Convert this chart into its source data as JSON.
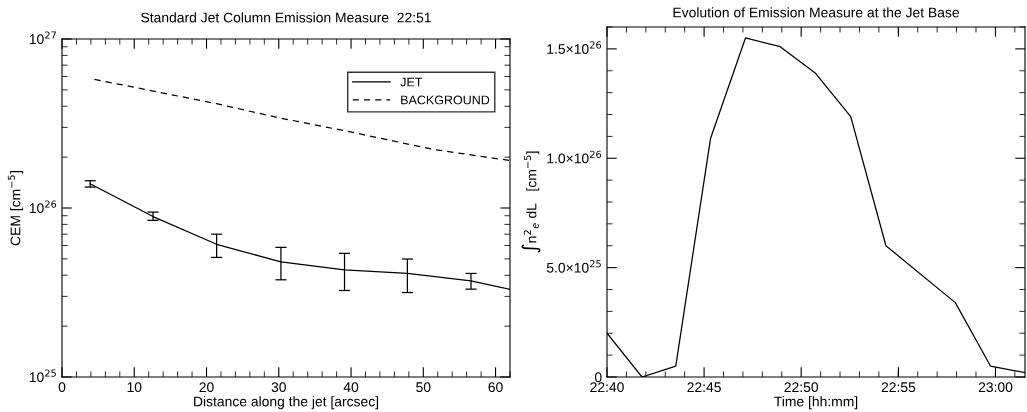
{
  "chart_data": [
    {
      "type": "line",
      "title": "Standard Jet Column Emission Measure  22:51",
      "xlabel": "Distance along the jet [arcsec]",
      "ylabel": "CEM [cm$^{−5}$]",
      "log": "y",
      "xlim": [
        0,
        62
      ],
      "xticks": [
        0,
        10,
        20,
        30,
        40,
        50,
        60
      ],
      "ylim": [
        1e+25,
        1e+27
      ],
      "yticks": [
        {
          "value": 1e+25,
          "label": "10$^{25}$"
        },
        {
          "value": 1e+26,
          "label": "10$^{26}$"
        },
        {
          "value": 1e+27,
          "label": "10$^{27}$"
        }
      ],
      "legend": "top right",
      "grid": false,
      "series": [
        {
          "name": "JET",
          "color": "#000000",
          "line_style": "solid",
          "x": [
            3.9,
            12.6,
            21.4,
            30.3,
            39.1,
            47.8,
            56.6,
            62
          ],
          "values": [
            1.39e+26,
            8.9e+25,
            6.1e+25,
            4.8e+25,
            4.3e+25,
            4.1e+25,
            3.7e+25,
            3.3e+25
          ],
          "errors": [
            [
              1.33e+26,
              1.45e+26
            ],
            [
              8.45e+25,
              9.46e+25
            ],
            [
              5.1e+25,
              7e+25
            ],
            [
              3.76e+25,
              5.85e+25
            ],
            [
              3.25e+25,
              5.39e+25
            ],
            [
              3.16e+25,
              4.99e+25
            ],
            [
              3.31e+25,
              4.1e+25
            ],
            null
          ]
        },
        {
          "name": "BACKGROUND",
          "color": "#000000",
          "line_style": "dashed",
          "x": [
            4.5,
            21.4,
            30,
            39.4,
            51.4,
            62
          ],
          "values": [
            5.77e+26,
            4.14e+26,
            3.42e+26,
            2.85e+26,
            2.22e+26,
            1.91e+26
          ]
        }
      ]
    },
    {
      "type": "line",
      "title": "Evolution of Emission Measure at the Jet Base",
      "xlabel": "Time [hh:mm]",
      "ylabel": "∫n$^{2}$$_{e}$ dL   [cm$^{−5}$]",
      "xlim": [
        22.6667,
        23.0253
      ],
      "xticks": [
        {
          "value": 22.6667,
          "label": "22:40"
        },
        {
          "value": 22.75,
          "label": "22:45"
        },
        {
          "value": 22.8333,
          "label": "22:50"
        },
        {
          "value": 22.9167,
          "label": "22:55"
        },
        {
          "value": 23.0,
          "label": "23:00"
        }
      ],
      "ylim": [
        0,
        1.6e+26
      ],
      "yticks": [
        0,
        {
          "value": 5e+25,
          "label": "5.0×10$^{25}$"
        },
        {
          "value": 1e+26,
          "label": "1.0×10$^{26}$"
        },
        {
          "value": 1.5e+26,
          "label": "1.5×10$^{26}$"
        }
      ],
      "grid": false,
      "series": [
        {
          "color": "#000000",
          "line_style": "solid",
          "x": [
            22.6667,
            22.6967,
            22.7257,
            22.7555,
            22.7855,
            22.8153,
            22.8453,
            22.8758,
            22.906,
            22.9655,
            22.9957,
            23.0253
          ],
          "values": [
            2e+25,
            0,
            5e+24,
            1.09e+26,
            1.55e+26,
            1.51e+26,
            1.39e+26,
            1.19e+26,
            6e+25,
            3.4e+25,
            5e+24,
            2e+24
          ]
        }
      ]
    }
  ]
}
